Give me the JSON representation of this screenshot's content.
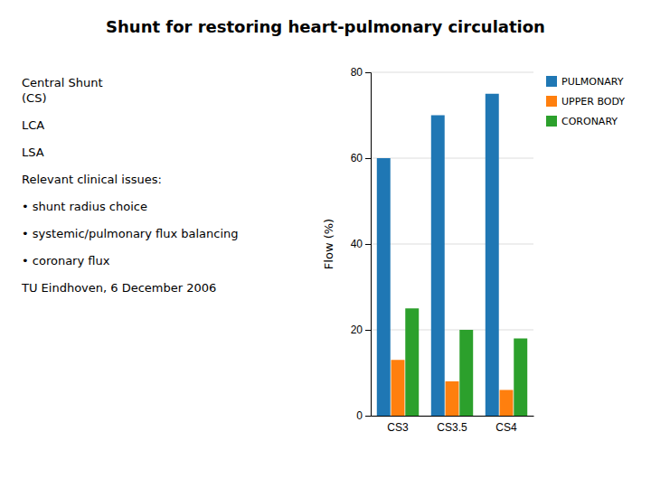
{
  "chart_data": {
    "type": "bar",
    "title": "Shunt for restoring heart-pulmonary circulation",
    "ylabel": "Flow (%)",
    "categories": [
      "CS3",
      "CS3.5",
      "CS4"
    ],
    "series": [
      {
        "name": "PULMONARY",
        "values": [
          60,
          70,
          75
        ]
      },
      {
        "name": "UPPER BODY",
        "values": [
          13,
          8,
          6
        ]
      },
      {
        "name": "CORONARY",
        "values": [
          25,
          20,
          18
        ]
      }
    ],
    "ylim": [
      0,
      80
    ],
    "yticks": [
      0,
      20,
      40,
      60,
      80
    ],
    "grid": true,
    "legend": "upper right",
    "annotations": [
      "Central Shunt\n(CS)",
      "LCA",
      "LSA",
      "Relevant clinical issues:",
      "• shunt radius choice",
      "• systemic/pulmonary flux balancing",
      "• coronary flux",
      "TU Eindhoven, 6 December 2006"
    ]
  }
}
